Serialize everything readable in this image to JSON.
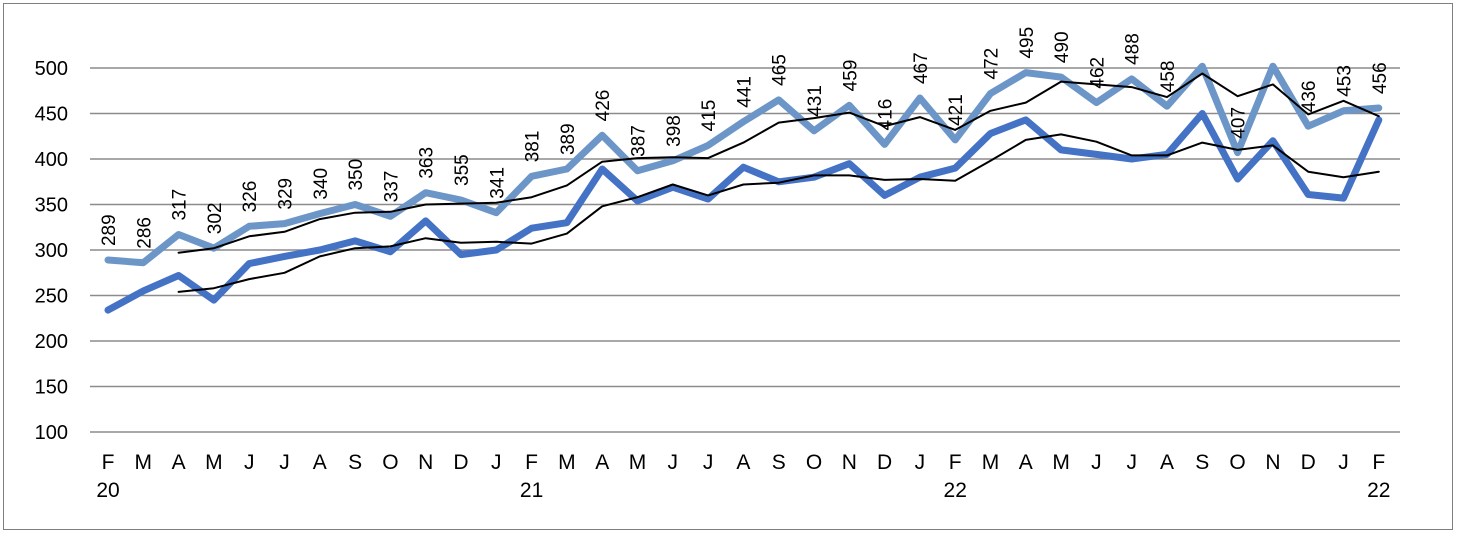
{
  "chart_data": {
    "type": "line",
    "title": "",
    "xlabel": "",
    "ylabel": "",
    "ylim": [
      100,
      500
    ],
    "yticks": [
      100,
      150,
      200,
      250,
      300,
      350,
      400,
      450,
      500
    ],
    "grid": true,
    "legend": "none",
    "month_labels": [
      "F",
      "M",
      "A",
      "M",
      "J",
      "J",
      "A",
      "S",
      "O",
      "N",
      "D",
      "J",
      "F",
      "M",
      "A",
      "M",
      "J",
      "J",
      "A",
      "S",
      "O",
      "N",
      "D",
      "J",
      "F",
      "M",
      "A",
      "M",
      "J",
      "J",
      "A",
      "S",
      "O",
      "N",
      "D",
      "J",
      "F"
    ],
    "year_labels": [
      {
        "index": 0,
        "label": "20"
      },
      {
        "index": 12,
        "label": "21"
      },
      {
        "index": 24,
        "label": "22"
      },
      {
        "index": 36,
        "label": "22"
      }
    ],
    "series": [
      {
        "color": "#6c96c8",
        "width": 7,
        "show_labels": true,
        "values": [
          289,
          286,
          317,
          302,
          326,
          329,
          340,
          350,
          337,
          363,
          355,
          341,
          381,
          389,
          426,
          387,
          398,
          415,
          441,
          465,
          431,
          459,
          416,
          467,
          421,
          472,
          495,
          490,
          462,
          488,
          458,
          510,
          407,
          505,
          436,
          453,
          456
        ],
        "labels": [
          "289",
          "286",
          "317",
          "302",
          "326",
          "329",
          "340",
          "350",
          "337",
          "363",
          "355",
          "341",
          "381",
          "389",
          "426",
          "387",
          "398",
          "415",
          "441",
          "465",
          "431",
          "459",
          "416",
          "467",
          "421",
          "472",
          "495",
          "490",
          "462",
          "488",
          "458",
          "",
          "407",
          "",
          "436",
          "453",
          "456"
        ]
      },
      {
        "color": "#4472c4",
        "width": 7,
        "show_labels": false,
        "values": [
          234,
          255,
          272,
          245,
          285,
          293,
          300,
          310,
          298,
          332,
          295,
          300,
          324,
          330,
          389,
          354,
          369,
          356,
          391,
          375,
          380,
          395,
          360,
          380,
          390,
          428,
          443,
          410,
          405,
          400,
          405,
          450,
          378,
          420,
          361,
          357,
          443
        ]
      },
      {
        "color": "#000000",
        "width": 2,
        "show_labels": false,
        "values": [
          null,
          null,
          297,
          302,
          315,
          320,
          334,
          341,
          342,
          350,
          351,
          352,
          358,
          371,
          397,
          401,
          402,
          401,
          418,
          440,
          445,
          451,
          436,
          446,
          432,
          453,
          462,
          485,
          482,
          479,
          468,
          494,
          469,
          482,
          449,
          464,
          447
        ]
      },
      {
        "color": "#000000",
        "width": 2,
        "show_labels": false,
        "values": [
          null,
          null,
          254,
          258,
          268,
          275,
          293,
          302,
          304,
          313,
          308,
          309,
          307,
          318,
          348,
          358,
          372,
          360,
          372,
          374,
          382,
          382,
          377,
          378,
          376,
          398,
          421,
          427,
          419,
          404,
          404,
          418,
          410,
          415,
          386,
          380,
          386
        ]
      }
    ]
  }
}
